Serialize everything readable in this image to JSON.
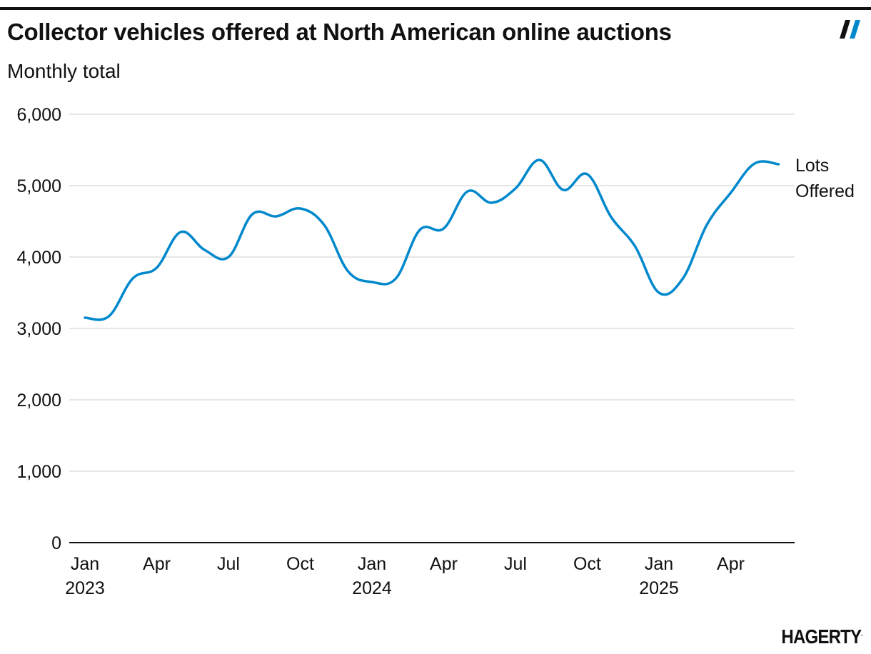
{
  "header": {
    "title": "Collector vehicles offered at North American online auctions",
    "subtitle": "Monthly total"
  },
  "footer": {
    "brand": "HAGERTY",
    "brand_mark": "."
  },
  "colors": {
    "series": "#0088cc",
    "grid": "#dddddd",
    "axis": "#111111",
    "text": "#111111"
  },
  "chart_data": {
    "type": "line",
    "title": "Collector vehicles offered at North American online auctions",
    "subtitle": "Monthly total",
    "xlabel": "",
    "ylabel": "",
    "ylim": [
      0,
      6000
    ],
    "yticks": [
      0,
      1000,
      2000,
      3000,
      4000,
      5000,
      6000
    ],
    "ytick_labels": [
      "0",
      "1,000",
      "2,000",
      "3,000",
      "4,000",
      "5,000",
      "6,000"
    ],
    "xticks": [
      {
        "index": 0,
        "label": "Jan",
        "year": "2023"
      },
      {
        "index": 3,
        "label": "Apr",
        "year": ""
      },
      {
        "index": 6,
        "label": "Jul",
        "year": ""
      },
      {
        "index": 9,
        "label": "Oct",
        "year": ""
      },
      {
        "index": 12,
        "label": "Jan",
        "year": "2024"
      },
      {
        "index": 15,
        "label": "Apr",
        "year": ""
      },
      {
        "index": 18,
        "label": "Jul",
        "year": ""
      },
      {
        "index": 21,
        "label": "Oct",
        "year": ""
      },
      {
        "index": 24,
        "label": "Jan",
        "year": "2025"
      },
      {
        "index": 27,
        "label": "Apr",
        "year": ""
      }
    ],
    "grid": true,
    "series": [
      {
        "name": "Lots Offered",
        "label_lines": [
          "Lots",
          "Offered"
        ],
        "x": [
          "Jan 2023",
          "Feb 2023",
          "Mar 2023",
          "Apr 2023",
          "May 2023",
          "Jun 2023",
          "Jul 2023",
          "Aug 2023",
          "Sep 2023",
          "Oct 2023",
          "Nov 2023",
          "Dec 2023",
          "Jan 2024",
          "Feb 2024",
          "Mar 2024",
          "Apr 2024",
          "May 2024",
          "Jun 2024",
          "Jul 2024",
          "Aug 2024",
          "Sep 2024",
          "Oct 2024",
          "Nov 2024",
          "Dec 2024",
          "Jan 2025",
          "Feb 2025",
          "Mar 2025",
          "Apr 2025",
          "May 2025",
          "Jun 2025"
        ],
        "values": [
          3150,
          3170,
          3700,
          3850,
          4350,
          4100,
          4000,
          4600,
          4570,
          4680,
          4450,
          3800,
          3650,
          3700,
          4380,
          4400,
          4920,
          4760,
          4960,
          5360,
          4940,
          5160,
          4560,
          4150,
          3500,
          3700,
          4450,
          4900,
          5310,
          5300
        ]
      }
    ]
  }
}
